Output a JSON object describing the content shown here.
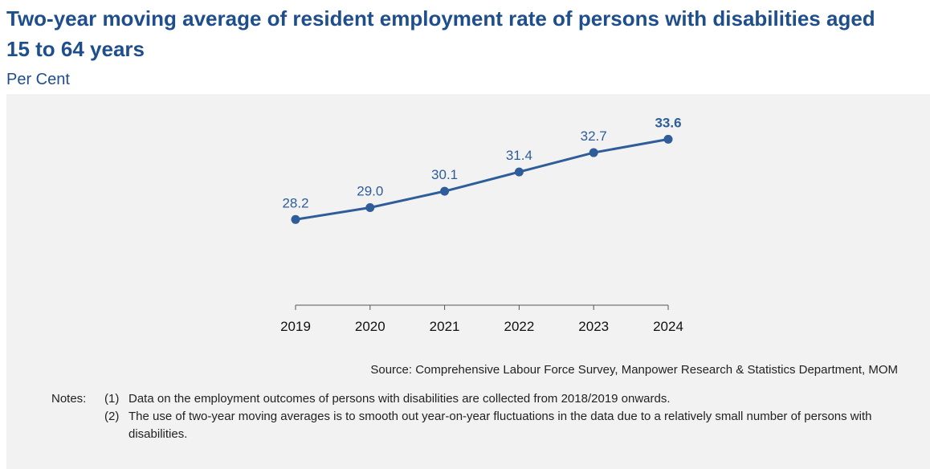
{
  "chart_data": {
    "type": "line",
    "title": "Two-year moving average of resident employment rate of persons with disabilities aged 15 to 64 years",
    "subtitle": "Per Cent",
    "categories": [
      "2019",
      "2020",
      "2021",
      "2022",
      "2023",
      "2024"
    ],
    "values": [
      28.2,
      29,
      30.1,
      31.4,
      32.7,
      33.6
    ],
    "value_labels": [
      "28.2",
      "29.0",
      "30.1",
      "31.4",
      "32.7",
      "33.6"
    ],
    "color": "#2e5d9a",
    "ylim": [
      22,
      36
    ],
    "grid": false,
    "source": "Source: Comprehensive Labour Force Survey, Manpower Research & Statistics Department, MOM",
    "notes": {
      "label": "Notes:",
      "items": [
        {
          "number": "(1)",
          "text": "Data on the employment outcomes of persons with disabilities are collected from 2018/2019 onwards."
        },
        {
          "number": "(2)",
          "text": "The use of two-year moving averages is to smooth out year-on-year fluctuations in the data due to a relatively small number of persons with disabilities."
        }
      ]
    }
  }
}
